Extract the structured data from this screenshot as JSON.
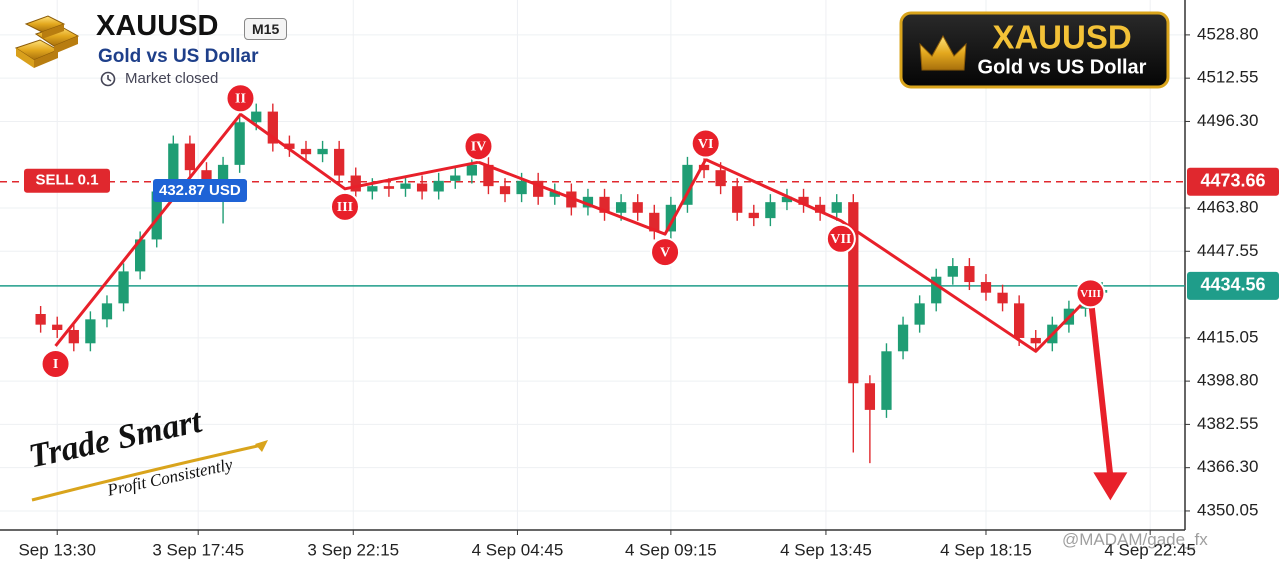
{
  "chart_data": {
    "type": "candlestick",
    "title": "XAUUSD",
    "timeframe": "M15",
    "subtitle": "Gold vs US Dollar",
    "status": "Market closed",
    "badge_title": "XAUUSD",
    "badge_subtitle": "Gold vs US Dollar",
    "slogan": "Trade Smart",
    "tagline": "Profit Consistently",
    "watermark": "@MADAM/gade_fx",
    "position_label": "432.87 USD",
    "grid": true,
    "up_color": "#1f9d74",
    "down_color": "#e0282e",
    "xlim": [
      -6.9,
      136
    ],
    "ylim": [
      4342.9,
      4541.9
    ],
    "xticks": [
      {
        "value": 0,
        "label": "Sep 13:30"
      },
      {
        "value": 17,
        "label": "3 Sep 17:45"
      },
      {
        "value": 35.7,
        "label": "3 Sep 22:15"
      },
      {
        "value": 55.5,
        "label": "4 Sep 04:45"
      },
      {
        "value": 74,
        "label": "4 Sep 09:15"
      },
      {
        "value": 92.7,
        "label": "4 Sep 13:45"
      },
      {
        "value": 112,
        "label": "4 Sep 18:15"
      },
      {
        "value": 131.8,
        "label": "4 Sep 22:45"
      }
    ],
    "yticks": [
      {
        "value": 4528.8,
        "label": "4528.80"
      },
      4512.55,
      {
        "value": 4496.3,
        "label": "4496.30"
      },
      {
        "value": 4463.8,
        "label": "4463.80"
      },
      4447.55,
      4415.05,
      {
        "value": 4398.8,
        "label": "4398.80"
      },
      4382.55,
      {
        "value": 4366.3,
        "label": "4366.30"
      },
      4350.05
    ],
    "candles": {
      "x": [
        -2,
        0,
        2,
        4,
        6,
        8,
        10,
        12,
        14,
        16,
        18,
        20,
        22,
        24,
        26,
        28,
        30,
        32,
        34,
        36,
        38,
        40,
        42,
        44,
        46,
        48,
        50,
        52,
        54,
        56,
        58,
        60,
        62,
        64,
        66,
        68,
        70,
        72,
        74,
        76,
        78,
        80,
        82,
        84,
        86,
        88,
        90,
        92,
        94,
        96,
        98,
        100,
        102,
        104,
        106,
        108,
        110,
        112,
        114,
        116,
        118,
        120,
        122,
        124,
        126
      ],
      "open": [
        4424,
        4420,
        4418,
        4413,
        4422,
        4428,
        4440,
        4452,
        4470,
        4488,
        4478,
        4470,
        4480,
        4496,
        4500,
        4488,
        4486,
        4484,
        4486,
        4476,
        4470,
        4472,
        4471,
        4473,
        4470,
        4474,
        4476,
        4480,
        4472,
        4469,
        4474,
        4468,
        4470,
        4464,
        4468,
        4462,
        4466,
        4462,
        4455,
        4465,
        4480,
        4478,
        4472,
        4462,
        4460,
        4466,
        4468,
        4465,
        4462,
        4466,
        4398,
        4388,
        4410,
        4420,
        4428,
        4438,
        4442,
        4436,
        4432,
        4428,
        4415,
        4413,
        4420,
        4426,
        4432
      ],
      "high": [
        4427,
        4423,
        4421,
        4425,
        4431,
        4443,
        4455,
        4473,
        4491,
        4491,
        4481,
        4483,
        4499,
        4503,
        4503,
        4491,
        4489,
        4489,
        4489,
        4479,
        4475,
        4475,
        4476,
        4476,
        4477,
        4479,
        4483,
        4483,
        4475,
        4477,
        4477,
        4473,
        4473,
        4471,
        4471,
        4469,
        4469,
        4465,
        4468,
        4483,
        4483,
        4481,
        4475,
        4465,
        4469,
        4471,
        4471,
        4468,
        4469,
        4469,
        4401,
        4413,
        4423,
        4431,
        4441,
        4445,
        4445,
        4439,
        4435,
        4431,
        4418,
        4423,
        4429,
        4435,
        4436
      ],
      "low": [
        4417,
        4415,
        4410,
        4410,
        4419,
        4425,
        4437,
        4449,
        4467,
        4475,
        4467,
        4458,
        4477,
        4493,
        4485,
        4483,
        4481,
        4481,
        4473,
        4467,
        4467,
        4468,
        4468,
        4467,
        4467,
        4471,
        4473,
        4469,
        4466,
        4466,
        4465,
        4465,
        4461,
        4461,
        4459,
        4459,
        4459,
        4452,
        4452,
        4462,
        4475,
        4469,
        4459,
        4457,
        4457,
        4463,
        4462,
        4459,
        4459,
        4372,
        4368,
        4385,
        4407,
        4417,
        4425,
        4435,
        4433,
        4429,
        4425,
        4412,
        4410,
        4410,
        4417,
        4423,
        4429
      ],
      "close": [
        4420,
        4418,
        4413,
        4422,
        4428,
        4440,
        4452,
        4470,
        4488,
        4478,
        4470,
        4480,
        4496,
        4500,
        4488,
        4486,
        4484,
        4486,
        4476,
        4470,
        4472,
        4471,
        4473,
        4470,
        4474,
        4476,
        4480,
        4472,
        4469,
        4474,
        4468,
        4470,
        4464,
        4468,
        4462,
        4466,
        4462,
        4455,
        4465,
        4480,
        4478,
        4472,
        4462,
        4460,
        4466,
        4468,
        4465,
        4462,
        4466,
        4398,
        4388,
        4410,
        4420,
        4428,
        4438,
        4442,
        4436,
        4432,
        4428,
        4415,
        4413,
        4420,
        4426,
        4432,
        4433
      ]
    },
    "waves": {
      "color": "#e8202a",
      "x": [
        -0.2,
        22.1,
        34.7,
        50.8,
        73.3,
        78.2,
        94.5,
        118,
        124.6
      ],
      "y": [
        4412,
        4499,
        4471,
        4481,
        4454,
        4482,
        4459,
        4410,
        4431
      ],
      "labels": [
        "I",
        "II",
        "III",
        "IV",
        "V",
        "VI",
        "VII",
        null,
        "VIII"
      ]
    },
    "target": {
      "x": 127,
      "y": 4354
    },
    "levels": [
      {
        "name": "SELL 0.1",
        "value": 4473.66,
        "color": "#e0282e",
        "style": "dashed"
      },
      {
        "value": 4434.56,
        "color": "#1f9d8a",
        "style": "solid"
      }
    ]
  }
}
